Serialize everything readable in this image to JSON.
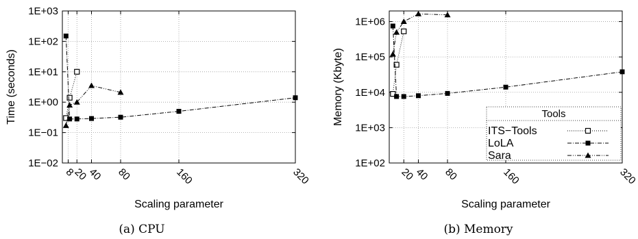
{
  "chart_data": [
    {
      "type": "line",
      "caption": "(a) CPU",
      "xlabel": "Scaling parameter",
      "ylabel": "Time (seconds)",
      "x_ticks": [
        8,
        20,
        40,
        80,
        160,
        320
      ],
      "xlim": [
        0,
        320
      ],
      "yscale": "log",
      "ylim": [
        0.01,
        1000
      ],
      "y_ticks": [
        "1E−02",
        "1E−01",
        "1E+00",
        "1E+01",
        "1E+02",
        "1E+03"
      ],
      "grid": true,
      "legend": false,
      "series": [
        {
          "name": "ITS−Tools",
          "marker": "open-square",
          "dash": "1,2",
          "x": [
            5,
            10,
            20,
            40
          ],
          "y": [
            0.3,
            1.4,
            10.0,
            null
          ]
        },
        {
          "name": "LoLA",
          "marker": "filled-square",
          "dash": "6,2,1,2",
          "x": [
            5,
            10,
            20,
            40,
            80,
            160,
            320
          ],
          "y": [
            150,
            0.28,
            0.28,
            0.29,
            0.32,
            0.5,
            1.4
          ]
        },
        {
          "name": "Sara",
          "marker": "filled-triangle",
          "dash": "6,2,1,2,1,2",
          "x": [
            5,
            10,
            20,
            40,
            80
          ],
          "y": [
            0.17,
            0.8,
            1.0,
            3.5,
            2.1
          ]
        }
      ]
    },
    {
      "type": "line",
      "caption": "(b) Memory",
      "xlabel": "Scaling parameter",
      "ylabel": "Memory (Kbyte)",
      "x_ticks": [
        20,
        40,
        80,
        160,
        320
      ],
      "xlim": [
        0,
        320
      ],
      "yscale": "log",
      "ylim": [
        100,
        2000000
      ],
      "y_ticks": [
        "1E+02",
        "1E+03",
        "1E+04",
        "1E+05",
        "1E+06"
      ],
      "grid": true,
      "legend": "bottom-right",
      "legend_title": "Tools",
      "series": [
        {
          "name": "ITS−Tools",
          "marker": "open-square",
          "dash": "1,2",
          "x": [
            5,
            10,
            20,
            40
          ],
          "y": [
            9000,
            60000,
            530000,
            null
          ]
        },
        {
          "name": "LoLA",
          "marker": "filled-square",
          "dash": "6,2,1,2",
          "x": [
            5,
            10,
            20,
            40,
            80,
            160,
            320
          ],
          "y": [
            750000,
            7600,
            7600,
            8000,
            9300,
            14000,
            38000
          ]
        },
        {
          "name": "Sara",
          "marker": "filled-triangle",
          "dash": "6,2,1,2,1,2",
          "x": [
            5,
            10,
            20,
            40,
            80
          ],
          "y": [
            120000,
            500000,
            1000000,
            1650000,
            1550000
          ]
        }
      ]
    }
  ]
}
